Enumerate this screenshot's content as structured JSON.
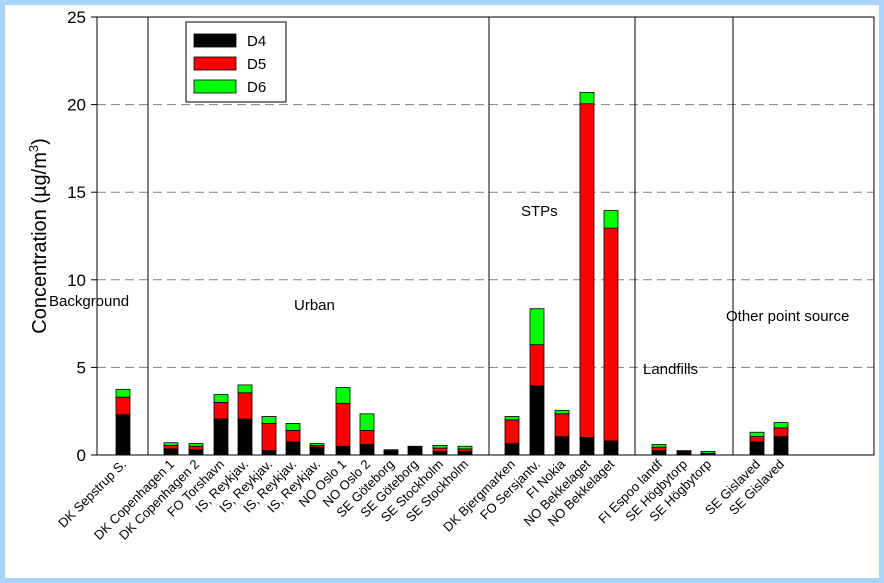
{
  "chart_data": {
    "type": "bar",
    "stacked": true,
    "ylabel": "Concentration (µg/m3)",
    "ylabel_base": "Concentration (µg/m",
    "ylabel_sup": "3",
    "ylabel_close": ")",
    "ylim": [
      0,
      25
    ],
    "yticks": [
      0,
      5,
      10,
      15,
      20,
      25
    ],
    "grid": "dashed horizontal at 5, 10, 15, 20",
    "legend_position": "top-left",
    "categories": [
      "DK Sepstrup S.",
      "DK Copenhagen 1",
      "DK Copenhagen 2",
      "FO Torshavn",
      "IS, Reykjav.",
      "IS, Reykjav.",
      "IS, Reykjav.",
      "IS, Reykjav.",
      "NO Oslo 1",
      "NO Oslo 2",
      "SE Göteborg",
      "SE Göteborg",
      "SE Stockholm",
      "SE Stockholm",
      "DK Bjergmarken",
      "FO Sersjantv.",
      "FI Nokia",
      "NO Bekkelaget",
      "NO Bekkelaget",
      "FI Espoo landf",
      "SE Högbytorp",
      "SE Högbytorp",
      "SE Gislaved",
      "SE Gislaved"
    ],
    "series": [
      {
        "name": "D4",
        "color": "#000000",
        "values": [
          2.3,
          0.35,
          0.3,
          2.05,
          2.05,
          0.25,
          0.75,
          0.45,
          0.5,
          0.6,
          0.2,
          0.45,
          0.2,
          0.2,
          0.65,
          3.95,
          1.05,
          1.0,
          0.8,
          0.25,
          0.2,
          0.05,
          0.75,
          1.05
        ]
      },
      {
        "name": "D5",
        "color": "#ff0000",
        "values": [
          1.0,
          0.2,
          0.2,
          0.95,
          1.5,
          1.55,
          0.65,
          0.1,
          2.45,
          0.8,
          0.05,
          0.0,
          0.2,
          0.15,
          1.35,
          2.35,
          1.3,
          19.05,
          12.15,
          0.2,
          0.0,
          0.05,
          0.3,
          0.5
        ]
      },
      {
        "name": "D6",
        "color": "#00ff00",
        "values": [
          0.45,
          0.15,
          0.15,
          0.45,
          0.45,
          0.4,
          0.4,
          0.1,
          0.9,
          0.95,
          0.05,
          0.05,
          0.15,
          0.15,
          0.2,
          2.05,
          0.2,
          0.65,
          1.0,
          0.15,
          0.05,
          0.1,
          0.25,
          0.3
        ]
      }
    ],
    "groups": [
      {
        "label": "Background",
        "first": 0,
        "last": 0
      },
      {
        "label": "Urban",
        "first": 1,
        "last": 13
      },
      {
        "label": "STPs",
        "first": 14,
        "last": 18
      },
      {
        "label": "Landfills",
        "first": 19,
        "last": 21
      },
      {
        "label": "Other point source",
        "first": 22,
        "last": 23
      }
    ]
  }
}
